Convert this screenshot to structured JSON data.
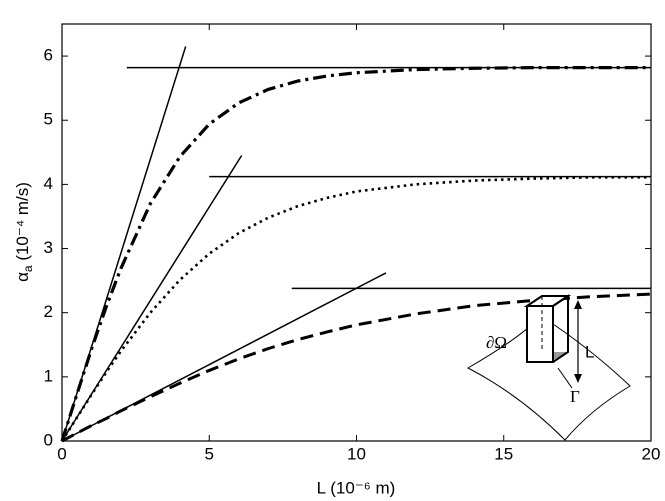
{
  "chart_data": {
    "type": "line",
    "xlabel": "L (10⁻⁶ m)",
    "ylabel": "α",
    "ylabel_sub": "a",
    "ylabel_unit": " (10⁻⁴ m/s)",
    "xlim": [
      0,
      20
    ],
    "ylim": [
      0,
      6.5
    ],
    "xticks": [
      0,
      5,
      10,
      15,
      20
    ],
    "yticks": [
      0,
      1,
      2,
      3,
      4,
      5,
      6
    ],
    "x": [
      0,
      0.5,
      1,
      1.5,
      2,
      3,
      4,
      5,
      6,
      7,
      8,
      9,
      10,
      12,
      14,
      16,
      18,
      20
    ],
    "series": [
      {
        "color": "#000000",
        "dash": "dashdot",
        "values": [
          0,
          0.72,
          1.43,
          2.09,
          2.69,
          3.7,
          4.43,
          4.94,
          5.27,
          5.48,
          5.61,
          5.69,
          5.74,
          5.79,
          5.81,
          5.82,
          5.82,
          5.82
        ]
      },
      {
        "color": "#000000",
        "dash": "dotted",
        "values": [
          0,
          0.36,
          0.72,
          1.07,
          1.4,
          2.0,
          2.51,
          2.92,
          3.24,
          3.48,
          3.66,
          3.79,
          3.89,
          4.0,
          4.06,
          4.09,
          4.11,
          4.11
        ]
      },
      {
        "color": "#000000",
        "dash": "dashed",
        "values": [
          0,
          0.12,
          0.24,
          0.35,
          0.47,
          0.69,
          0.9,
          1.1,
          1.28,
          1.44,
          1.58,
          1.7,
          1.81,
          1.98,
          2.11,
          2.19,
          2.25,
          2.29
        ]
      }
    ],
    "reference_lines": [
      {
        "x": [
          0,
          4.2
        ],
        "y": [
          0,
          6.15
        ]
      },
      {
        "x": [
          2.2,
          20
        ],
        "y": [
          5.82,
          5.82
        ]
      },
      {
        "x": [
          0,
          6.1
        ],
        "y": [
          0,
          4.45
        ]
      },
      {
        "x": [
          5,
          20
        ],
        "y": [
          4.12,
          4.12
        ]
      },
      {
        "x": [
          0,
          11
        ],
        "y": [
          0,
          2.62
        ]
      },
      {
        "x": [
          7.8,
          20
        ],
        "y": [
          2.38,
          2.38
        ]
      }
    ],
    "inset_labels": [
      "∂Ω",
      "L",
      "Γ"
    ]
  }
}
